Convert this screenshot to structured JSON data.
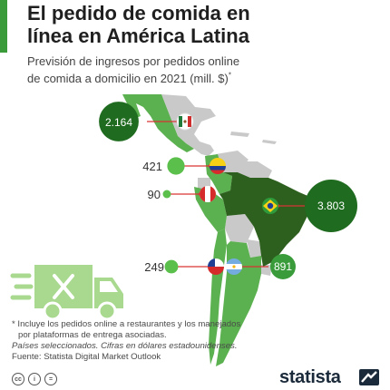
{
  "header": {
    "title_line1": "El pedido de comida en",
    "title_line2": "línea en América Latina",
    "subtitle_line1": "Previsión de ingresos por pedidos online",
    "subtitle_line2": "de comida a domicilio en 2021 (mill. $)",
    "subtitle_mark": "*"
  },
  "chart_data": {
    "type": "bubble-map",
    "unit": "mill. $",
    "year": 2021,
    "points": [
      {
        "country": "México",
        "value": 2164,
        "label": "2.164",
        "flag": "mexico-flag"
      },
      {
        "country": "Colombia",
        "value": 421,
        "label": "421",
        "flag": "colombia-flag"
      },
      {
        "country": "Perú",
        "value": 90,
        "label": "90",
        "flag": "peru-flag"
      },
      {
        "country": "Brasil",
        "value": 3803,
        "label": "3.803",
        "flag": "brazil-flag"
      },
      {
        "country": "Chile",
        "value": 249,
        "label": "249",
        "flag": "chile-flag"
      },
      {
        "country": "Argentina",
        "value": 891,
        "label": "891",
        "flag": "argentina-flag"
      }
    ]
  },
  "footnotes": {
    "line1": "* Incluye los pedidos online a restaurantes y los manejados",
    "line2": "por plataformas de entrega asociadas.",
    "line3": "Países seleccionados. Cifras en dólares estadounidenses.",
    "line4": "Fuente: Statista Digital Market Outlook"
  },
  "license_icons": [
    "cc",
    "i",
    "="
  ],
  "brand": {
    "name": "statista"
  },
  "colors": {
    "accent": "#3a9b3a",
    "bubble_dark": "#1f6b1f",
    "bubble_mid": "#3a9b3a",
    "bubble_light": "#5bbf4b",
    "map_land": "#5bb04f",
    "map_brazil": "#2d5f1e",
    "map_other": "#c9c9c9",
    "connector": "#d93434",
    "truck": "#a9d88f"
  }
}
